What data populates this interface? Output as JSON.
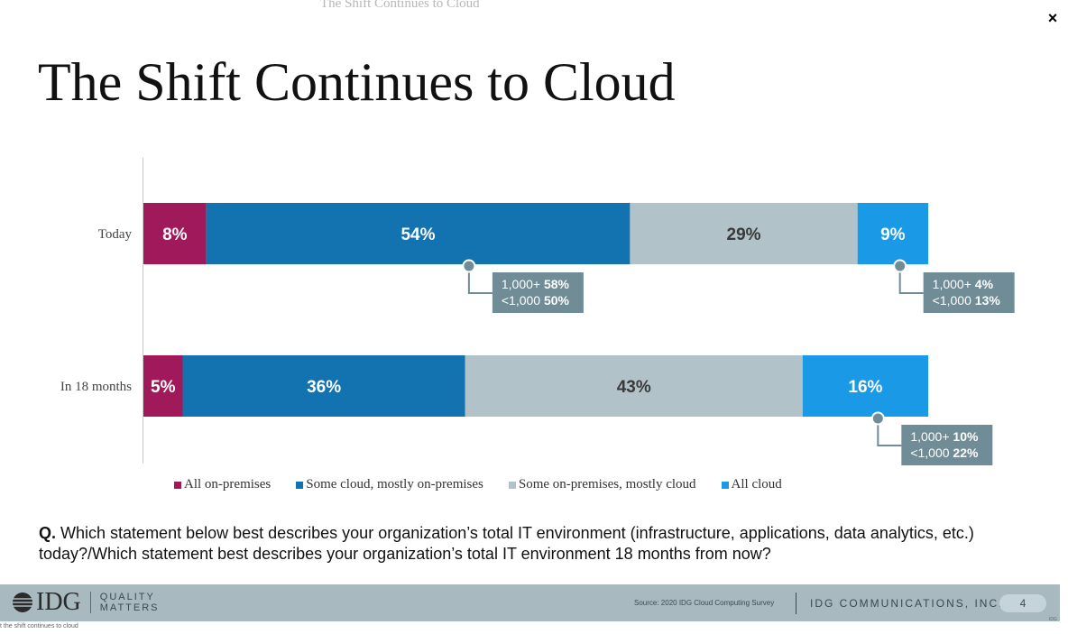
{
  "ghost_title": "The Shift Continues to Cloud",
  "close_label": "×",
  "title": "The Shift Continues to Cloud",
  "chart_data": {
    "type": "bar",
    "orientation": "horizontal-stacked-100",
    "categories": [
      "Today",
      "In 18 months"
    ],
    "series": [
      {
        "name": "All on-premises",
        "color": "#a0195a",
        "values": [
          8,
          5
        ]
      },
      {
        "name": "Some cloud, mostly on-premises",
        "color": "#1273b0",
        "values": [
          54,
          36
        ]
      },
      {
        "name": "Some on-premises, mostly cloud",
        "color": "#b1c2c8",
        "values": [
          29,
          43
        ]
      },
      {
        "name": "All cloud",
        "color": "#1a9ae6",
        "values": [
          9,
          16
        ]
      }
    ],
    "value_labels": [
      [
        "8%",
        "54%",
        "29%",
        "9%"
      ],
      [
        "5%",
        "36%",
        "43%",
        "16%"
      ]
    ],
    "callouts": [
      {
        "category": "Today",
        "series": "Some cloud, mostly on-premises",
        "lines": [
          {
            "prefix": "1,000+ ",
            "value": "58%"
          },
          {
            "prefix": "<1,000 ",
            "value": "50%"
          }
        ]
      },
      {
        "category": "Today",
        "series": "All cloud",
        "lines": [
          {
            "prefix": "1,000+ ",
            "value": "4%"
          },
          {
            "prefix": "<1,000 ",
            "value": "13%"
          }
        ]
      },
      {
        "category": "In 18 months",
        "series": "All cloud",
        "lines": [
          {
            "prefix": "1,000+ ",
            "value": "10%"
          },
          {
            "prefix": "<1,000 ",
            "value": "22%"
          }
        ]
      }
    ],
    "legend_position": "bottom"
  },
  "question": {
    "label": "Q.",
    "text": "Which statement below best describes your organization’s total IT environment (infrastructure, applications, data analytics, etc.) today?/Which statement best describes your organization’s total IT environment 18 months from now?"
  },
  "footer": {
    "logo": "IDG",
    "tagline_1": "QUALITY",
    "tagline_2": "MATTERS",
    "source": "Source: 2020 IDG Cloud Computing Survey",
    "company": "IDG COMMUNICATIONS, INC.",
    "page": "4"
  },
  "caption": "t the shift continues to cloud",
  "tiny_mark": "IDG",
  "colors": {
    "callout_bg": "#6f8c97",
    "footer_bg": "#a9b9c0"
  }
}
